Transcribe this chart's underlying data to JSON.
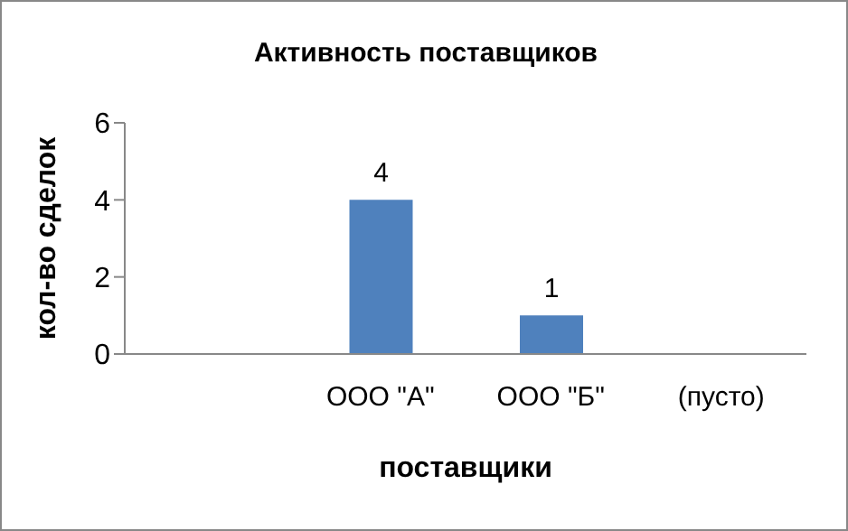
{
  "chart_data": {
    "type": "bar",
    "title": "Активность поставщиков",
    "xlabel": "поставщики",
    "ylabel": "кол-во сделок",
    "categories": [
      null,
      "ООО \"А\"",
      "ООО \"Б\"",
      "(пусто)"
    ],
    "values": [
      null,
      4,
      1,
      null
    ],
    "color": "#4f81bd",
    "ylim": [
      0,
      6
    ],
    "yticks": [
      0,
      2,
      4,
      6
    ],
    "grid": false,
    "legend": false,
    "data_labels": true
  }
}
